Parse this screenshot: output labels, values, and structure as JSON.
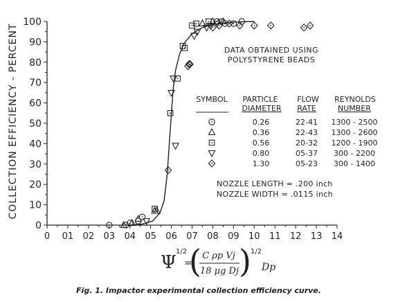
{
  "chart_data": {
    "type": "scatter",
    "title": "",
    "caption": "Fig. 1.   Impactor experimental collection efficiency curve.",
    "ylabel": "COLLECTION EFFICIENCY - PERCENT",
    "xlabel_formula": {
      "psi": "Ψ",
      "half": "1/2",
      "eq": "=",
      "numerator": "C ρp Vj",
      "denominator": "18 μg Dj",
      "tail": "Dp"
    },
    "xlim": [
      0,
      1.4
    ],
    "ylim": [
      0,
      100
    ],
    "x_ticks": [
      0,
      0.1,
      0.2,
      0.3,
      0.4,
      0.5,
      0.6,
      0.7,
      0.8,
      0.9,
      1.0,
      1.1,
      1.2,
      1.3,
      1.4
    ],
    "x_tick_labels": [
      "0",
      "01",
      "02",
      "03",
      "04",
      "05",
      "06",
      "07",
      "08",
      "09",
      "10",
      "11",
      "12",
      "13",
      "14"
    ],
    "y_ticks": [
      0,
      10,
      20,
      30,
      40,
      50,
      60,
      70,
      80,
      90,
      100
    ],
    "y_tick_labels": [
      "0",
      "10",
      "20",
      "30",
      "40",
      "50",
      "60",
      "70",
      "80",
      "90",
      "100"
    ],
    "grid": false,
    "annotation_note": [
      "DATA OBTAINED USING",
      "POLYSTYRENE BEADS"
    ],
    "table_headers": [
      [
        "SYMBOL",
        ""
      ],
      [
        "PARTICLE",
        "DIAMETER"
      ],
      [
        "FLOW",
        "RATE"
      ],
      [
        "REYNOLDS",
        "NUMBER"
      ]
    ],
    "table_rows": [
      {
        "marker": "circle",
        "diameter": "0.26",
        "flow": "22-41",
        "reynolds": "1300 - 2500"
      },
      {
        "marker": "triangle",
        "diameter": "0.36",
        "flow": "22-43",
        "reynolds": "1300 - 2600"
      },
      {
        "marker": "square",
        "diameter": "0.56",
        "flow": "20-32",
        "reynolds": "1200 - 1900"
      },
      {
        "marker": "triangle-down",
        "diameter": "0.80",
        "flow": "05-37",
        "reynolds": "300 - 2200"
      },
      {
        "marker": "diamond",
        "diameter": "1.30",
        "flow": "05-23",
        "reynolds": "300 - 1400"
      }
    ],
    "nozzle_notes": [
      "NOZZLE  LENGTH = .200 inch",
      "NOZZLE  WIDTH = .0115 inch"
    ],
    "series": [
      {
        "marker": "circle",
        "points": [
          [
            0.3,
            0
          ],
          [
            0.38,
            0
          ],
          [
            0.4,
            1
          ],
          [
            0.44,
            2
          ],
          [
            0.46,
            4
          ],
          [
            0.82,
            100
          ],
          [
            0.86,
            99
          ],
          [
            0.9,
            99
          ],
          [
            0.94,
            100
          ]
        ]
      },
      {
        "marker": "triangle",
        "points": [
          [
            0.37,
            0
          ],
          [
            0.41,
            1
          ],
          [
            0.44,
            3
          ],
          [
            0.52,
            7
          ],
          [
            0.53,
            7
          ],
          [
            0.75,
            99
          ],
          [
            0.8,
            100
          ],
          [
            0.85,
            100
          ]
        ]
      },
      {
        "marker": "square",
        "points": [
          [
            0.52,
            8
          ],
          [
            0.595,
            55
          ],
          [
            0.63,
            72
          ],
          [
            0.655,
            88
          ],
          [
            0.665,
            87
          ],
          [
            0.7,
            98
          ],
          [
            0.72,
            99
          ],
          [
            0.78,
            100
          ]
        ]
      },
      {
        "marker": "triangle-down",
        "points": [
          [
            0.48,
            2
          ],
          [
            0.6,
            65
          ],
          [
            0.61,
            72
          ],
          [
            0.62,
            39
          ],
          [
            0.71,
            93
          ],
          [
            0.725,
            95
          ],
          [
            0.77,
            97
          ],
          [
            0.79,
            98
          ],
          [
            0.82,
            99
          ],
          [
            0.84,
            100
          ]
        ]
      },
      {
        "marker": "diamond",
        "points": [
          [
            0.585,
            27
          ],
          [
            0.68,
            78
          ],
          [
            0.685,
            79
          ],
          [
            0.69,
            79
          ],
          [
            0.8,
            97
          ],
          [
            0.83,
            98
          ],
          [
            0.88,
            99
          ],
          [
            0.93,
            98
          ],
          [
            1.0,
            98
          ],
          [
            1.08,
            98
          ],
          [
            1.24,
            97
          ],
          [
            1.27,
            98
          ]
        ]
      }
    ],
    "fit_curve": [
      [
        0.4,
        0
      ],
      [
        0.46,
        0.5
      ],
      [
        0.51,
        2
      ],
      [
        0.545,
        6
      ],
      [
        0.565,
        12
      ],
      [
        0.58,
        25
      ],
      [
        0.59,
        40
      ],
      [
        0.6,
        55
      ],
      [
        0.61,
        68
      ],
      [
        0.62,
        76
      ],
      [
        0.64,
        84
      ],
      [
        0.66,
        89
      ],
      [
        0.7,
        94
      ],
      [
        0.75,
        97
      ],
      [
        0.8,
        98.5
      ],
      [
        0.85,
        99.3
      ],
      [
        0.9,
        99.7
      ],
      [
        1.0,
        100
      ]
    ]
  }
}
